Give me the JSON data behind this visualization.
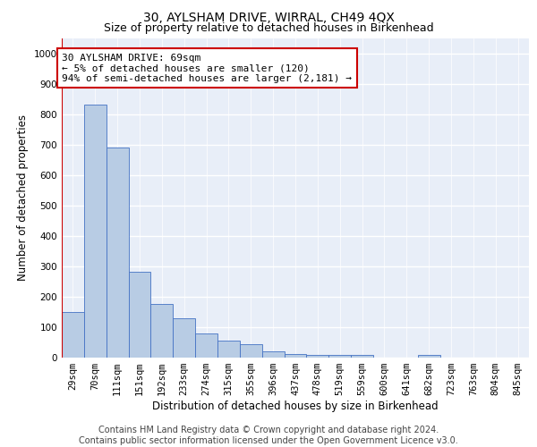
{
  "title": "30, AYLSHAM DRIVE, WIRRAL, CH49 4QX",
  "subtitle": "Size of property relative to detached houses in Birkenhead",
  "xlabel": "Distribution of detached houses by size in Birkenhead",
  "ylabel": "Number of detached properties",
  "footer_line1": "Contains HM Land Registry data © Crown copyright and database right 2024.",
  "footer_line2": "Contains public sector information licensed under the Open Government Licence v3.0.",
  "categories": [
    "29sqm",
    "70sqm",
    "111sqm",
    "151sqm",
    "192sqm",
    "233sqm",
    "274sqm",
    "315sqm",
    "355sqm",
    "396sqm",
    "437sqm",
    "478sqm",
    "519sqm",
    "559sqm",
    "600sqm",
    "641sqm",
    "682sqm",
    "723sqm",
    "763sqm",
    "804sqm",
    "845sqm"
  ],
  "values": [
    150,
    830,
    690,
    283,
    175,
    130,
    80,
    55,
    45,
    22,
    12,
    10,
    10,
    8,
    0,
    0,
    10,
    0,
    0,
    0,
    0
  ],
  "bar_color": "#b8cce4",
  "bar_edge_color": "#4472c4",
  "annotation_text": "30 AYLSHAM DRIVE: 69sqm\n← 5% of detached houses are smaller (120)\n94% of semi-detached houses are larger (2,181) →",
  "annotation_box_color": "white",
  "annotation_box_edge_color": "#cc0000",
  "vline_color": "#cc0000",
  "vline_x": -0.5,
  "ylim": [
    0,
    1050
  ],
  "yticks": [
    0,
    100,
    200,
    300,
    400,
    500,
    600,
    700,
    800,
    900,
    1000
  ],
  "background_color": "#e8eef8",
  "grid_color": "white",
  "title_fontsize": 10,
  "subtitle_fontsize": 9,
  "axis_label_fontsize": 8.5,
  "tick_fontsize": 7.5,
  "annotation_fontsize": 8,
  "footer_fontsize": 7
}
